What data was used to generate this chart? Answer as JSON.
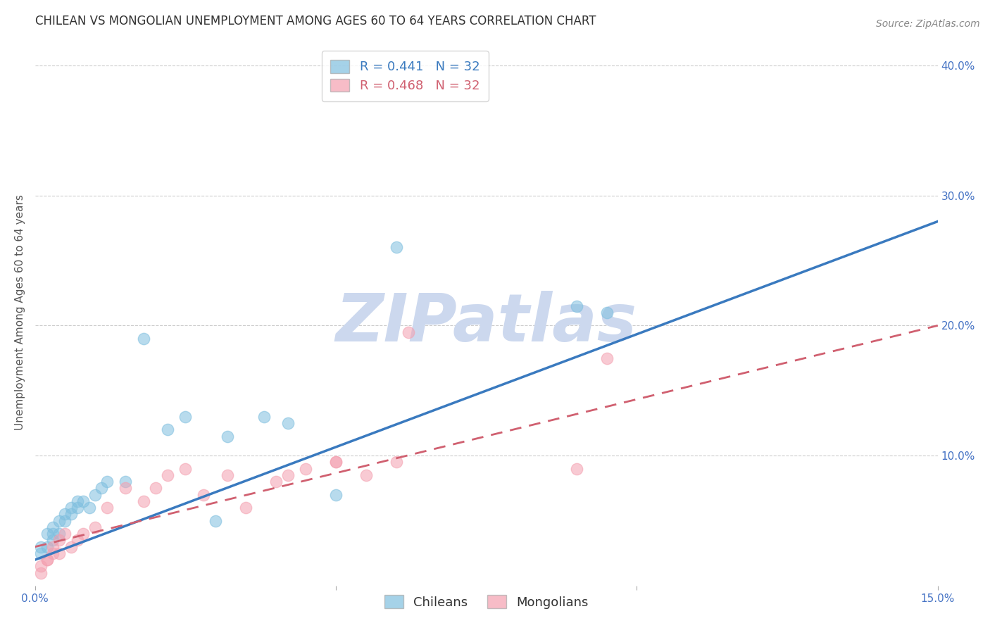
{
  "title": "CHILEAN VS MONGOLIAN UNEMPLOYMENT AMONG AGES 60 TO 64 YEARS CORRELATION CHART",
  "source": "Source: ZipAtlas.com",
  "ylabel": "Unemployment Among Ages 60 to 64 years",
  "xlim": [
    0.0,
    0.15
  ],
  "ylim": [
    0.0,
    0.42
  ],
  "yticks_right": [
    0.1,
    0.2,
    0.3,
    0.4
  ],
  "ytick_labels_right": [
    "10.0%",
    "20.0%",
    "30.0%",
    "40.0%"
  ],
  "grid_color": "#cccccc",
  "background_color": "#ffffff",
  "chilean_color": "#7fbfdf",
  "mongolian_color": "#f4a0b0",
  "trend_chilean_color": "#3a7abf",
  "trend_mongolian_color": "#d06070",
  "legend_r_chilean": "R = 0.441",
  "legend_n_chilean": "N = 32",
  "legend_r_mongolian": "R = 0.468",
  "legend_n_mongolian": "N = 32",
  "watermark": "ZIPatlas",
  "watermark_color": "#ccd8ee",
  "chilean_x": [
    0.001,
    0.001,
    0.002,
    0.002,
    0.003,
    0.003,
    0.003,
    0.004,
    0.004,
    0.005,
    0.005,
    0.006,
    0.006,
    0.007,
    0.007,
    0.008,
    0.009,
    0.01,
    0.011,
    0.012,
    0.015,
    0.018,
    0.022,
    0.025,
    0.03,
    0.032,
    0.038,
    0.042,
    0.05,
    0.06,
    0.09,
    0.095
  ],
  "chilean_y": [
    0.025,
    0.03,
    0.03,
    0.04,
    0.035,
    0.04,
    0.045,
    0.04,
    0.05,
    0.05,
    0.055,
    0.055,
    0.06,
    0.06,
    0.065,
    0.065,
    0.06,
    0.07,
    0.075,
    0.08,
    0.08,
    0.19,
    0.12,
    0.13,
    0.05,
    0.115,
    0.13,
    0.125,
    0.07,
    0.26,
    0.215,
    0.21
  ],
  "mongolian_x": [
    0.001,
    0.001,
    0.002,
    0.002,
    0.003,
    0.003,
    0.004,
    0.004,
    0.005,
    0.006,
    0.007,
    0.008,
    0.01,
    0.012,
    0.015,
    0.018,
    0.02,
    0.022,
    0.025,
    0.028,
    0.032,
    0.035,
    0.04,
    0.042,
    0.045,
    0.05,
    0.055,
    0.06,
    0.062,
    0.09,
    0.095,
    0.05
  ],
  "mongolian_y": [
    0.01,
    0.015,
    0.02,
    0.02,
    0.025,
    0.03,
    0.025,
    0.035,
    0.04,
    0.03,
    0.035,
    0.04,
    0.045,
    0.06,
    0.075,
    0.065,
    0.075,
    0.085,
    0.09,
    0.07,
    0.085,
    0.06,
    0.08,
    0.085,
    0.09,
    0.095,
    0.085,
    0.095,
    0.195,
    0.09,
    0.175,
    0.095
  ],
  "trend_chilean_x0": 0.0,
  "trend_chilean_y0": 0.02,
  "trend_chilean_x1": 0.15,
  "trend_chilean_y1": 0.28,
  "trend_mongolian_x0": 0.0,
  "trend_mongolian_y0": 0.03,
  "trend_mongolian_x1": 0.15,
  "trend_mongolian_y1": 0.2,
  "title_fontsize": 12,
  "label_fontsize": 11,
  "tick_fontsize": 11,
  "legend_fontsize": 13
}
